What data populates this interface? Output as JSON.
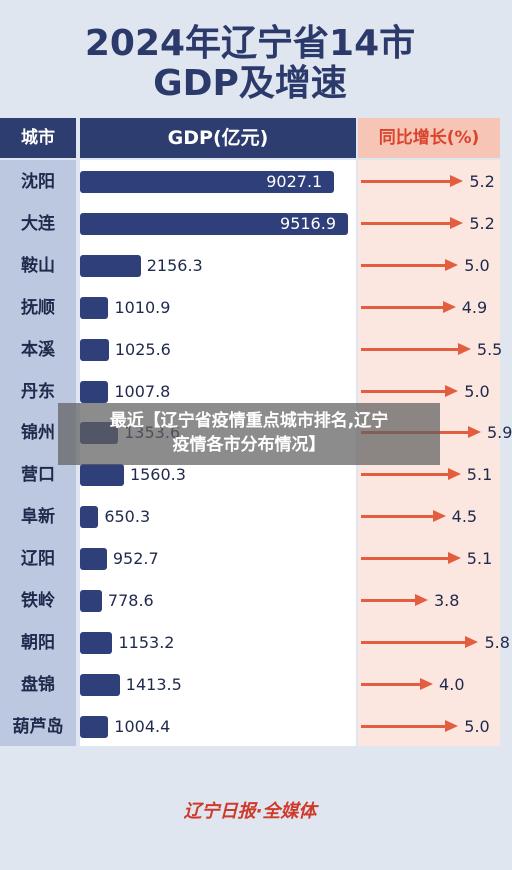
{
  "title_line1": "2024年辽宁省14市",
  "title_line2": "GDP及增速",
  "headers": {
    "city": "城市",
    "gdp": "GDP(亿元)",
    "growth": "同比增长(%)"
  },
  "overlay": {
    "line1": "最近【辽宁省疫情重点城市排名,辽宁",
    "line2": "疫情各市分布情况】"
  },
  "footer": "辽宁日报·全媒体",
  "chart_data": {
    "type": "bar",
    "title": "2024年辽宁省14市 GDP及增速",
    "categories": [
      "沈阳",
      "大连",
      "鞍山",
      "抚顺",
      "本溪",
      "丹东",
      "锦州",
      "营口",
      "阜新",
      "辽阳",
      "铁岭",
      "朝阳",
      "盘锦",
      "葫芦岛"
    ],
    "series": [
      {
        "name": "GDP(亿元)",
        "values": [
          9027.1,
          9516.9,
          2156.3,
          1010.9,
          1025.6,
          1007.8,
          1353.6,
          1560.3,
          650.3,
          952.7,
          778.6,
          1153.2,
          1413.5,
          1004.4
        ]
      },
      {
        "name": "同比增长(%)",
        "values": [
          5.2,
          5.2,
          5.0,
          4.9,
          5.5,
          5.0,
          5.9,
          5.1,
          4.5,
          5.1,
          3.8,
          5.8,
          4.0,
          5.0
        ]
      }
    ],
    "value_labels": {
      "gdp": [
        "9027.1",
        "9516.9",
        "2156.3",
        "1010.9",
        "1025.6",
        "1007.8",
        "1353.6",
        "1560.3",
        "650.3",
        "952.7",
        "778.6",
        "1153.2",
        "1413.5",
        "1004.4"
      ],
      "growth": [
        "5.2",
        "5.2",
        "5.0",
        "4.9",
        "5.5",
        "5.0",
        "5.9",
        "5.1",
        "4.5",
        "5.1",
        "3.8",
        "5.8",
        "4.0",
        "5.0"
      ]
    },
    "colors": {
      "bar": "#2f3f7a",
      "arrow": "#e35d3f"
    }
  }
}
